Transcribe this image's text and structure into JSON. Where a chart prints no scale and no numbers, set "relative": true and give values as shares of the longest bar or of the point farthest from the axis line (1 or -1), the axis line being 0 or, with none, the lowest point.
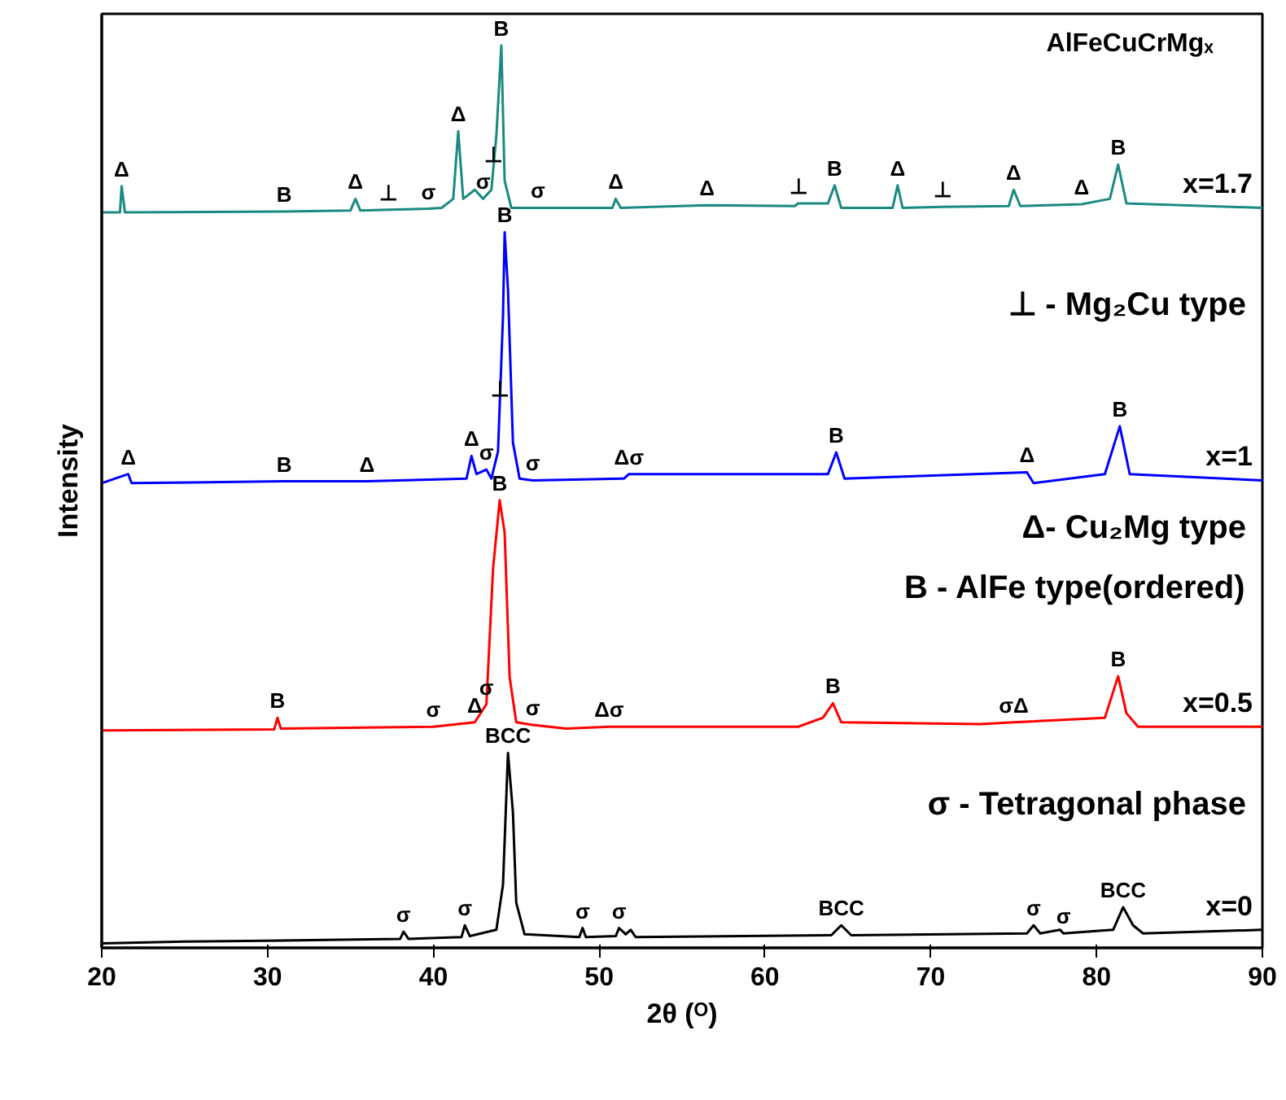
{
  "chart_data": {
    "type": "line",
    "relative": true,
    "xlabel": "2θ (ᴼ)",
    "ylabel": "Intensity",
    "xlim": [
      20,
      90
    ],
    "xticks": [
      20,
      30,
      40,
      50,
      60,
      70,
      80,
      90
    ],
    "grid": false,
    "marker": "none",
    "line_style": "solid",
    "series": [
      {
        "name": "x=1.7",
        "color": "#1a8a80",
        "x": [
          20,
          21.1,
          21.2,
          21.4,
          31.0,
          35,
          35.3,
          35.6,
          37.3,
          39.7,
          40.5,
          41.2,
          41.5,
          41.8,
          42.5,
          43,
          43.5,
          43.6,
          43.8,
          44.1,
          44.3,
          44.7,
          46.3,
          50.8,
          51.0,
          51.3,
          56.5,
          61.8,
          62,
          63.8,
          64.2,
          64.6,
          67.7,
          68.0,
          68.3,
          70.7,
          74.7,
          75.0,
          75.4,
          79.1,
          80.8,
          81.3,
          81.8,
          90
        ],
        "values": [
          0.815,
          0.815,
          0.844,
          0.815,
          0.816,
          0.817,
          0.83,
          0.817,
          0.818,
          0.819,
          0.82,
          0.83,
          0.905,
          0.83,
          0.84,
          0.83,
          0.84,
          0.86,
          0.9,
          1.0,
          0.85,
          0.82,
          0.82,
          0.82,
          0.83,
          0.82,
          0.823,
          0.822,
          0.825,
          0.825,
          0.845,
          0.82,
          0.82,
          0.845,
          0.82,
          0.821,
          0.822,
          0.84,
          0.822,
          0.824,
          0.83,
          0.868,
          0.825,
          0.82
        ]
      },
      {
        "name": "x=1",
        "color": "#0000ff",
        "x": [
          20,
          21.6,
          21.8,
          31.0,
          36,
          42,
          42.3,
          42.6,
          43.2,
          43.5,
          43.9,
          44.0,
          44.2,
          44.3,
          44.5,
          44.8,
          45.2,
          46.0,
          51.5,
          51.8,
          63.8,
          64.3,
          64.8,
          75.8,
          76.2,
          80.5,
          81.4,
          82,
          90
        ],
        "values": [
          0.515,
          0.525,
          0.515,
          0.517,
          0.517,
          0.52,
          0.545,
          0.525,
          0.53,
          0.52,
          0.55,
          0.6,
          0.7,
          0.793,
          0.73,
          0.56,
          0.52,
          0.518,
          0.52,
          0.525,
          0.525,
          0.549,
          0.52,
          0.527,
          0.515,
          0.525,
          0.578,
          0.525,
          0.518
        ]
      },
      {
        "name": "x=0.5",
        "color": "#ff0000",
        "x": [
          20,
          30.4,
          30.6,
          30.8,
          40,
          42.5,
          43.2,
          43.6,
          44.0,
          44.3,
          44.6,
          45,
          46.0,
          48,
          50.6,
          62,
          63.5,
          64.1,
          64.6,
          73,
          75,
          80.5,
          81.3,
          81.8,
          82.5,
          90
        ],
        "values": [
          0.241,
          0.242,
          0.255,
          0.243,
          0.245,
          0.25,
          0.27,
          0.42,
          0.496,
          0.46,
          0.3,
          0.25,
          0.247,
          0.243,
          0.245,
          0.245,
          0.255,
          0.271,
          0.25,
          0.248,
          0.25,
          0.255,
          0.301,
          0.26,
          0.245,
          0.245
        ]
      },
      {
        "name": "x=0",
        "color": "#000000",
        "x": [
          20,
          25,
          30,
          38,
          38.2,
          38.5,
          41.7,
          41.9,
          42.2,
          43.8,
          44.2,
          44.5,
          44.8,
          45.0,
          45.5,
          48.8,
          49.0,
          49.2,
          51.0,
          51.2,
          51.6,
          51.9,
          52.2,
          64,
          64.6,
          65.2,
          75.8,
          76.2,
          76.6,
          77.8,
          78.0,
          81.0,
          81.6,
          82.2,
          82.8,
          90
        ],
        "values": [
          0.005,
          0.007,
          0.008,
          0.01,
          0.018,
          0.01,
          0.012,
          0.025,
          0.013,
          0.02,
          0.07,
          0.216,
          0.15,
          0.05,
          0.015,
          0.012,
          0.022,
          0.012,
          0.013,
          0.022,
          0.015,
          0.02,
          0.012,
          0.014,
          0.025,
          0.014,
          0.016,
          0.025,
          0.016,
          0.02,
          0.016,
          0.02,
          0.045,
          0.025,
          0.016,
          0.02
        ]
      }
    ],
    "annotations": [
      "AlFeCuCrMgₓ",
      "⊥ - Mg₂Cu type",
      "Δ- Cu₂Mg type",
      "B - AlFe type(ordered)",
      "σ - Tetragonal phase",
      {
        "text": "Δ",
        "x": 21.2,
        "y": 0.844
      },
      {
        "text": "B",
        "x": 31.0,
        "y": 0.816
      },
      {
        "text": "Δ",
        "x": 35.3,
        "y": 0.83
      },
      {
        "text": "⊥",
        "x": 37.3,
        "y": 0.818
      },
      {
        "text": "σ",
        "x": 39.7,
        "y": 0.819
      },
      {
        "text": "Δ",
        "x": 41.5,
        "y": 0.905
      },
      {
        "text": "⊥",
        "x": 43.6,
        "y": 0.86
      },
      {
        "text": "σ",
        "x": 43.0,
        "y": 0.83
      },
      {
        "text": "B",
        "x": 44.1,
        "y": 1.0
      },
      {
        "text": "σ",
        "x": 46.3,
        "y": 0.82
      },
      {
        "text": "Δ",
        "x": 51.0,
        "y": 0.83
      },
      {
        "text": "Δ",
        "x": 56.5,
        "y": 0.823
      },
      {
        "text": "⊥",
        "x": 62,
        "y": 0.825
      },
      {
        "text": "B",
        "x": 64.2,
        "y": 0.845
      },
      {
        "text": "Δ",
        "x": 68.0,
        "y": 0.845
      },
      {
        "text": "⊥",
        "x": 70.7,
        "y": 0.821
      },
      {
        "text": "Δ",
        "x": 75.0,
        "y": 0.84
      },
      {
        "text": "Δ",
        "x": 79.1,
        "y": 0.824
      },
      {
        "text": "B",
        "x": 81.3,
        "y": 0.868
      },
      {
        "text": "Δ",
        "x": 21.6,
        "y": 0.525
      },
      {
        "text": "B",
        "x": 31.0,
        "y": 0.517
      },
      {
        "text": "Δ",
        "x": 36,
        "y": 0.517
      },
      {
        "text": "Δ",
        "x": 42.3,
        "y": 0.545
      },
      {
        "text": "⊥",
        "x": 44.0,
        "y": 0.6
      },
      {
        "text": "σ",
        "x": 43.2,
        "y": 0.53
      },
      {
        "text": "B",
        "x": 44.3,
        "y": 0.793
      },
      {
        "text": "σ",
        "x": 46.0,
        "y": 0.518
      },
      {
        "text": "Δσ",
        "x": 51.8,
        "y": 0.525
      },
      {
        "text": "B",
        "x": 64.3,
        "y": 0.549
      },
      {
        "text": "Δ",
        "x": 75.8,
        "y": 0.527
      },
      {
        "text": "B",
        "x": 81.4,
        "y": 0.578
      },
      {
        "text": "B",
        "x": 30.6,
        "y": 0.255
      },
      {
        "text": "σ",
        "x": 40,
        "y": 0.245
      },
      {
        "text": "Δ",
        "x": 42.5,
        "y": 0.25
      },
      {
        "text": "σ",
        "x": 43.2,
        "y": 0.27
      },
      {
        "text": "B",
        "x": 44.0,
        "y": 0.496
      },
      {
        "text": "σ",
        "x": 46.0,
        "y": 0.247
      },
      {
        "text": "Δσ",
        "x": 50.6,
        "y": 0.245
      },
      {
        "text": "B",
        "x": 64.1,
        "y": 0.271
      },
      {
        "text": "σΔ",
        "x": 75,
        "y": 0.25
      },
      {
        "text": "B",
        "x": 81.3,
        "y": 0.301
      },
      {
        "text": "σ",
        "x": 38.2,
        "y": 0.018
      },
      {
        "text": "σ",
        "x": 41.9,
        "y": 0.025
      },
      {
        "text": "BCC",
        "x": 44.5,
        "y": 0.216
      },
      {
        "text": "σ",
        "x": 49.0,
        "y": 0.022
      },
      {
        "text": "σ",
        "x": 51.2,
        "y": 0.022
      },
      {
        "text": "BCC",
        "x": 64.6,
        "y": 0.025
      },
      {
        "text": "σ",
        "x": 76.2,
        "y": 0.025
      },
      {
        "text": "σ",
        "x": 78.0,
        "y": 0.016
      },
      {
        "text": "BCC",
        "x": 81.6,
        "y": 0.045
      }
    ]
  }
}
